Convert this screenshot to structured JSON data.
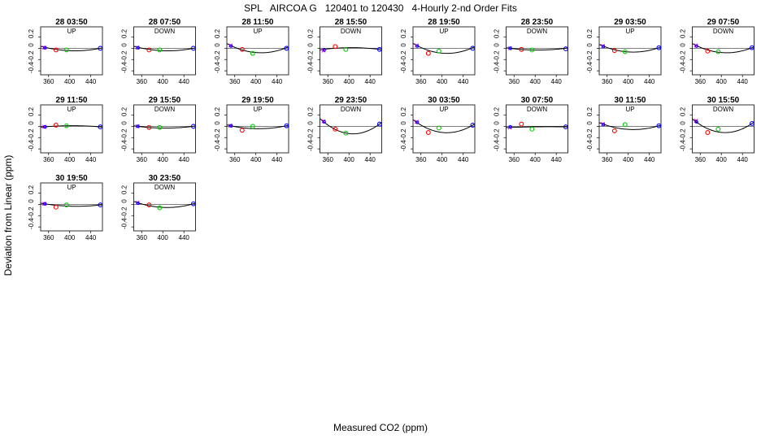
{
  "title": "SPL   AIRCOA G   120401 to 120430   4-Hourly 2-nd Order Fits",
  "xlabel": "Measured CO2 (ppm)",
  "ylabel": "Deviation from Linear (ppm)",
  "colors": {
    "axis": "#000000",
    "fit_line": "#000000",
    "ref_line": "#000000",
    "point_1": "#ff00ff",
    "point_2": "#0000ff",
    "point_3": "#ff0000",
    "point_4": "#00cc00",
    "point_5": "#0000ff"
  },
  "chart_data": {
    "type": "scatter",
    "x_ticks": [
      "360",
      "400",
      "440"
    ],
    "y_ticks": [
      "0.2",
      "0",
      "-0.2",
      "-0.4"
    ],
    "xlim": [
      345,
      462
    ],
    "ylim": [
      -0.47,
      0.38
    ],
    "point_x": [
      352,
      353,
      374,
      394,
      458
    ],
    "panels": [
      {
        "title": "28 03:50",
        "mode": "UP",
        "points": [
          0.01,
          0.01,
          -0.03,
          -0.03,
          0.0
        ],
        "fit": [
          0.02,
          -0.04,
          0.0
        ]
      },
      {
        "title": "28 07:50",
        "mode": "DOWN",
        "points": [
          0.01,
          0.01,
          -0.03,
          -0.03,
          0.0
        ],
        "fit": [
          0.02,
          -0.04,
          0.0
        ]
      },
      {
        "title": "28 11:50",
        "mode": "UP",
        "points": [
          0.05,
          0.04,
          -0.02,
          -0.09,
          0.0
        ],
        "fit": [
          0.05,
          -0.07,
          0.01
        ]
      },
      {
        "title": "28 15:50",
        "mode": "DOWN",
        "points": [
          -0.04,
          -0.03,
          0.03,
          -0.02,
          -0.02
        ],
        "fit": [
          -0.02,
          0.01,
          -0.02
        ]
      },
      {
        "title": "28 19:50",
        "mode": "UP",
        "points": [
          0.05,
          0.04,
          -0.09,
          -0.05,
          0.0
        ],
        "fit": [
          0.05,
          -0.08,
          0.01
        ]
      },
      {
        "title": "28 23:50",
        "mode": "DOWN",
        "points": [
          0.0,
          0.0,
          -0.02,
          -0.03,
          -0.01
        ],
        "fit": [
          0.0,
          -0.03,
          0.0
        ]
      },
      {
        "title": "29 03:50",
        "mode": "UP",
        "points": [
          0.04,
          0.03,
          -0.04,
          -0.06,
          0.01
        ],
        "fit": [
          0.04,
          -0.06,
          0.01
        ]
      },
      {
        "title": "29 07:50",
        "mode": "DOWN",
        "points": [
          0.05,
          0.04,
          -0.05,
          -0.06,
          0.01
        ],
        "fit": [
          0.05,
          -0.07,
          0.01
        ]
      },
      {
        "title": "29 11:50",
        "mode": "UP",
        "points": [
          -0.01,
          -0.01,
          0.02,
          0.01,
          -0.01
        ],
        "fit": [
          -0.01,
          0.01,
          -0.01
        ]
      },
      {
        "title": "29 15:50",
        "mode": "DOWN",
        "points": [
          0.0,
          0.0,
          -0.02,
          -0.02,
          0.0
        ],
        "fit": [
          0.0,
          -0.03,
          0.0
        ]
      },
      {
        "title": "29 19:50",
        "mode": "UP",
        "points": [
          0.01,
          0.01,
          -0.07,
          0.0,
          0.01
        ],
        "fit": [
          0.01,
          -0.04,
          0.01
        ]
      },
      {
        "title": "29 23:50",
        "mode": "DOWN",
        "points": [
          0.09,
          0.08,
          -0.05,
          -0.12,
          0.04
        ],
        "fit": [
          0.08,
          -0.12,
          0.04
        ]
      },
      {
        "title": "30 03:50",
        "mode": "UP",
        "points": [
          0.08,
          0.07,
          -0.11,
          -0.03,
          0.02
        ],
        "fit": [
          0.07,
          -0.1,
          0.02
        ]
      },
      {
        "title": "30 07:50",
        "mode": "DOWN",
        "points": [
          -0.02,
          -0.01,
          0.04,
          -0.05,
          -0.01
        ],
        "fit": [
          -0.02,
          -0.01,
          -0.01
        ]
      },
      {
        "title": "30 11:50",
        "mode": "UP",
        "points": [
          0.04,
          0.03,
          -0.08,
          0.03,
          0.01
        ],
        "fit": [
          0.04,
          -0.05,
          0.01
        ]
      },
      {
        "title": "30 15:50",
        "mode": "DOWN",
        "points": [
          0.1,
          0.08,
          -0.11,
          -0.05,
          0.05
        ],
        "fit": [
          0.08,
          -0.1,
          0.05
        ]
      },
      {
        "title": "30 19:50",
        "mode": "UP",
        "points": [
          0.01,
          0.01,
          -0.05,
          -0.01,
          -0.01
        ],
        "fit": [
          0.01,
          -0.03,
          -0.01
        ]
      },
      {
        "title": "30 23:50",
        "mode": "DOWN",
        "points": [
          0.03,
          0.02,
          -0.01,
          -0.06,
          0.01
        ],
        "fit": [
          0.03,
          -0.05,
          0.01
        ]
      }
    ]
  }
}
